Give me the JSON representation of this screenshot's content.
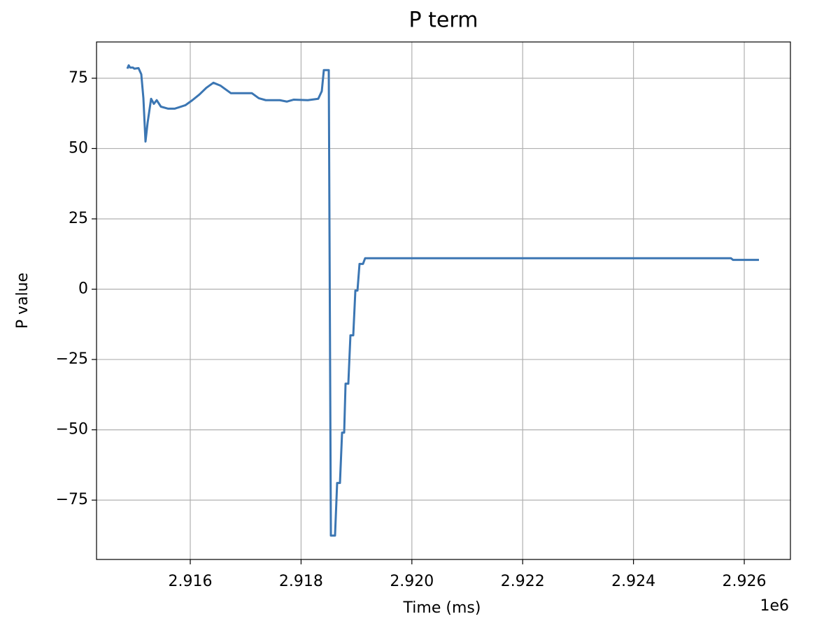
{
  "chart_data": {
    "type": "line",
    "title": "P term",
    "x_label": "Time (ms)",
    "y_label": "P value",
    "x_offset_label": "1e6",
    "x": [
      2914864,
      2914889,
      2914914,
      2914965,
      2914990,
      2915066,
      2915116,
      2915154,
      2915192,
      2915230,
      2915293,
      2915343,
      2915394,
      2915470,
      2915596,
      2915722,
      2915911,
      2916038,
      2916164,
      2916290,
      2916417,
      2916543,
      2916732,
      2917111,
      2917237,
      2917363,
      2917616,
      2917742,
      2917869,
      2918121,
      2918310,
      2918374,
      2918411,
      2918500,
      2918538,
      2918613,
      2918651,
      2918702,
      2918740,
      2918778,
      2918803,
      2918853,
      2918891,
      2918942,
      2918980,
      2919018,
      2919055,
      2919118,
      2919156,
      2922666,
      2925760,
      2925798,
      2926265
    ],
    "series": [
      {
        "color": "#3b76b3",
        "values": [
          78.4,
          79.6,
          78.8,
          78.8,
          78.4,
          78.6,
          76.4,
          67.9,
          52.5,
          59.2,
          67.7,
          65.9,
          67.2,
          64.9,
          64.2,
          64.2,
          65.4,
          67.2,
          69.2,
          71.6,
          73.4,
          72.4,
          69.7,
          69.7,
          67.9,
          67.2,
          67.2,
          66.7,
          67.4,
          67.2,
          67.7,
          70.4,
          77.9,
          77.9,
          -87.6,
          -87.6,
          -68.9,
          -68.9,
          -51.0,
          -51.0,
          -33.6,
          -33.6,
          -16.4,
          -16.4,
          -0.5,
          -0.5,
          9.0,
          9.0,
          11.0,
          11.0,
          11.0,
          10.4,
          10.4
        ]
      }
    ],
    "xlim": [
      2914308,
      2926833
    ],
    "xticks": [
      {
        "value": 2916000,
        "label": "2.916"
      },
      {
        "value": 2918000,
        "label": "2.918"
      },
      {
        "value": 2920000,
        "label": "2.920"
      },
      {
        "value": 2922000,
        "label": "2.922"
      },
      {
        "value": 2924000,
        "label": "2.924"
      },
      {
        "value": 2926000,
        "label": "2.926"
      }
    ],
    "ylim": [
      -96.1,
      87.9
    ],
    "yticks": [
      {
        "value": -75,
        "label": "−75"
      },
      {
        "value": -50,
        "label": "−50"
      },
      {
        "value": -25,
        "label": "−25"
      },
      0,
      25,
      50,
      75
    ],
    "grid": true
  }
}
